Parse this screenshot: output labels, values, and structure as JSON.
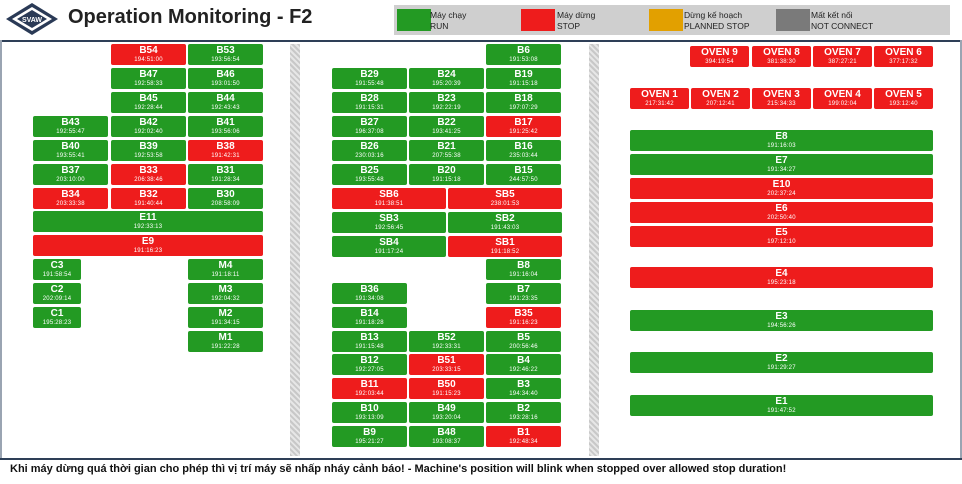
{
  "header": {
    "title": "Operation Monitoring - F2",
    "logo_text": "SVAW"
  },
  "legend": [
    {
      "vi": "Máy chạy",
      "en": "RUN",
      "color": "#239a23"
    },
    {
      "vi": "Máy dừng",
      "en": "STOP",
      "color": "#ee1c1c"
    },
    {
      "vi": "Dừng kế hoạch",
      "en": "PLANNED STOP",
      "color": "#e2a000"
    },
    {
      "vi": "Mất kết nối",
      "en": "NOT CONNECT",
      "color": "#7a7a7a"
    }
  ],
  "footer": "Khi máy dừng quá thời gian cho phép thì vị trí máy sẽ nhấp nháy cảnh báo! - Machine's position will blink when stopped over allowed stop duration!",
  "machines": {
    "B54": {
      "name": "B54",
      "time": "194:51:00",
      "status": "stop"
    },
    "B53": {
      "name": "B53",
      "time": "193:56:54",
      "status": "run"
    },
    "B47": {
      "name": "B47",
      "time": "192:58:33",
      "status": "run"
    },
    "B46": {
      "name": "B46",
      "time": "193:01:50",
      "status": "run"
    },
    "B45": {
      "name": "B45",
      "time": "192:28:44",
      "status": "run"
    },
    "B44": {
      "name": "B44",
      "time": "192:43:43",
      "status": "run"
    },
    "B43": {
      "name": "B43",
      "time": "192:55:47",
      "status": "run"
    },
    "B42": {
      "name": "B42",
      "time": "192:02:40",
      "status": "run"
    },
    "B41": {
      "name": "B41",
      "time": "193:56:06",
      "status": "run"
    },
    "B40": {
      "name": "B40",
      "time": "193:55:41",
      "status": "run"
    },
    "B39": {
      "name": "B39",
      "time": "192:53:58",
      "status": "run"
    },
    "B38": {
      "name": "B38",
      "time": "191:42:31",
      "status": "stop"
    },
    "B37": {
      "name": "B37",
      "time": "203:10:00",
      "status": "run"
    },
    "B33": {
      "name": "B33",
      "time": "206:38:46",
      "status": "stop"
    },
    "B31": {
      "name": "B31",
      "time": "191:28:34",
      "status": "run"
    },
    "B34": {
      "name": "B34",
      "time": "203:33:38",
      "status": "stop"
    },
    "B32": {
      "name": "B32",
      "time": "191:40:44",
      "status": "stop"
    },
    "B30": {
      "name": "B30",
      "time": "208:58:09",
      "status": "run"
    },
    "E11": {
      "name": "E11",
      "time": "192:33:13",
      "status": "run"
    },
    "E9": {
      "name": "E9",
      "time": "191:16:23",
      "status": "stop"
    },
    "C3": {
      "name": "C3",
      "time": "191:58:54",
      "status": "run"
    },
    "M4": {
      "name": "M4",
      "time": "191:18:11",
      "status": "run"
    },
    "C2": {
      "name": "C2",
      "time": "202:09:14",
      "status": "run"
    },
    "M3": {
      "name": "M3",
      "time": "192:04:32",
      "status": "run"
    },
    "C1": {
      "name": "C1",
      "time": "195:28:23",
      "status": "run"
    },
    "M2": {
      "name": "M2",
      "time": "191:34:15",
      "status": "run"
    },
    "M1": {
      "name": "M1",
      "time": "191:22:28",
      "status": "run"
    },
    "B6": {
      "name": "B6",
      "time": "191:53:08",
      "status": "run"
    },
    "B29": {
      "name": "B29",
      "time": "191:55:48",
      "status": "run"
    },
    "B24": {
      "name": "B24",
      "time": "195:20:39",
      "status": "run"
    },
    "B19": {
      "name": "B19",
      "time": "191:15:18",
      "status": "run"
    },
    "B28": {
      "name": "B28",
      "time": "191:15:31",
      "status": "run"
    },
    "B23": {
      "name": "B23",
      "time": "192:22:19",
      "status": "run"
    },
    "B18": {
      "name": "B18",
      "time": "197:07:29",
      "status": "run"
    },
    "B27": {
      "name": "B27",
      "time": "196:37:08",
      "status": "run"
    },
    "B22": {
      "name": "B22",
      "time": "193:41:25",
      "status": "run"
    },
    "B17": {
      "name": "B17",
      "time": "191:25:42",
      "status": "stop"
    },
    "B26": {
      "name": "B26",
      "time": "230:03:16",
      "status": "run"
    },
    "B21": {
      "name": "B21",
      "time": "207:55:38",
      "status": "run"
    },
    "B16": {
      "name": "B16",
      "time": "235:03:44",
      "status": "run"
    },
    "B25": {
      "name": "B25",
      "time": "193:55:48",
      "status": "run"
    },
    "B20": {
      "name": "B20",
      "time": "191:15:18",
      "status": "run"
    },
    "B15": {
      "name": "B15",
      "time": "244:57:50",
      "status": "run"
    },
    "SB6": {
      "name": "SB6",
      "time": "191:38:51",
      "status": "stop"
    },
    "SB5": {
      "name": "SB5",
      "time": "238:01:53",
      "status": "stop"
    },
    "SB3": {
      "name": "SB3",
      "time": "192:56:45",
      "status": "run"
    },
    "SB2": {
      "name": "SB2",
      "time": "191:43:03",
      "status": "run"
    },
    "SB4": {
      "name": "SB4",
      "time": "191:17:24",
      "status": "run"
    },
    "SB1": {
      "name": "SB1",
      "time": "191:18:52",
      "status": "stop"
    },
    "B8": {
      "name": "B8",
      "time": "191:16:04",
      "status": "run"
    },
    "B36": {
      "name": "B36",
      "time": "191:34:08",
      "status": "run"
    },
    "B7": {
      "name": "B7",
      "time": "191:23:35",
      "status": "run"
    },
    "B14": {
      "name": "B14",
      "time": "191:18:28",
      "status": "run"
    },
    "B35": {
      "name": "B35",
      "time": "191:16:23",
      "status": "stop"
    },
    "B13": {
      "name": "B13",
      "time": "191:15:48",
      "status": "run"
    },
    "B52": {
      "name": "B52",
      "time": "192:33:31",
      "status": "run"
    },
    "B5": {
      "name": "B5",
      "time": "200:56:46",
      "status": "run"
    },
    "B12": {
      "name": "B12",
      "time": "192:27:05",
      "status": "run"
    },
    "B51": {
      "name": "B51",
      "time": "203:33:15",
      "status": "stop"
    },
    "B4": {
      "name": "B4",
      "time": "192:46:22",
      "status": "run"
    },
    "B11": {
      "name": "B11",
      "time": "192:03:44",
      "status": "stop"
    },
    "B50": {
      "name": "B50",
      "time": "191:15:23",
      "status": "stop"
    },
    "B3": {
      "name": "B3",
      "time": "194:34:40",
      "status": "run"
    },
    "B10": {
      "name": "B10",
      "time": "193:13:09",
      "status": "run"
    },
    "B49": {
      "name": "B49",
      "time": "193:20:04",
      "status": "run"
    },
    "B2": {
      "name": "B2",
      "time": "193:28:16",
      "status": "run"
    },
    "B9": {
      "name": "B9",
      "time": "195:21:27",
      "status": "run"
    },
    "B48": {
      "name": "B48",
      "time": "193:08:37",
      "status": "run"
    },
    "B1": {
      "name": "B1",
      "time": "192:48:34",
      "status": "stop"
    },
    "OVEN9": {
      "name": "OVEN 9",
      "time": "394:19:54",
      "status": "stop"
    },
    "OVEN8": {
      "name": "OVEN 8",
      "time": "381:38:30",
      "status": "stop"
    },
    "OVEN7": {
      "name": "OVEN 7",
      "time": "387:27:21",
      "status": "stop"
    },
    "OVEN6": {
      "name": "OVEN 6",
      "time": "377:17:32",
      "status": "stop"
    },
    "OVEN1": {
      "name": "OVEN 1",
      "time": "217:31:42",
      "status": "stop"
    },
    "OVEN2": {
      "name": "OVEN 2",
      "time": "207:12:41",
      "status": "stop"
    },
    "OVEN3": {
      "name": "OVEN 3",
      "time": "215:34:33",
      "status": "stop"
    },
    "OVEN4": {
      "name": "OVEN 4",
      "time": "199:02:04",
      "status": "stop"
    },
    "OVEN5": {
      "name": "OVEN 5",
      "time": "193:12:40",
      "status": "stop"
    },
    "E8": {
      "name": "E8",
      "time": "191:16:03",
      "status": "run"
    },
    "E7": {
      "name": "E7",
      "time": "191:34:27",
      "status": "run"
    },
    "E10": {
      "name": "E10",
      "time": "202:37:24",
      "status": "stop"
    },
    "E6": {
      "name": "E6",
      "time": "202:50:40",
      "status": "stop"
    },
    "E5": {
      "name": "E5",
      "time": "197:12:10",
      "status": "stop"
    },
    "E4": {
      "name": "E4",
      "time": "195:23:18",
      "status": "stop"
    },
    "E3": {
      "name": "E3",
      "time": "194:56:26",
      "status": "run"
    },
    "E2": {
      "name": "E2",
      "time": "191:29:27",
      "status": "run"
    },
    "E1": {
      "name": "E1",
      "time": "191:47:52",
      "status": "run"
    }
  }
}
